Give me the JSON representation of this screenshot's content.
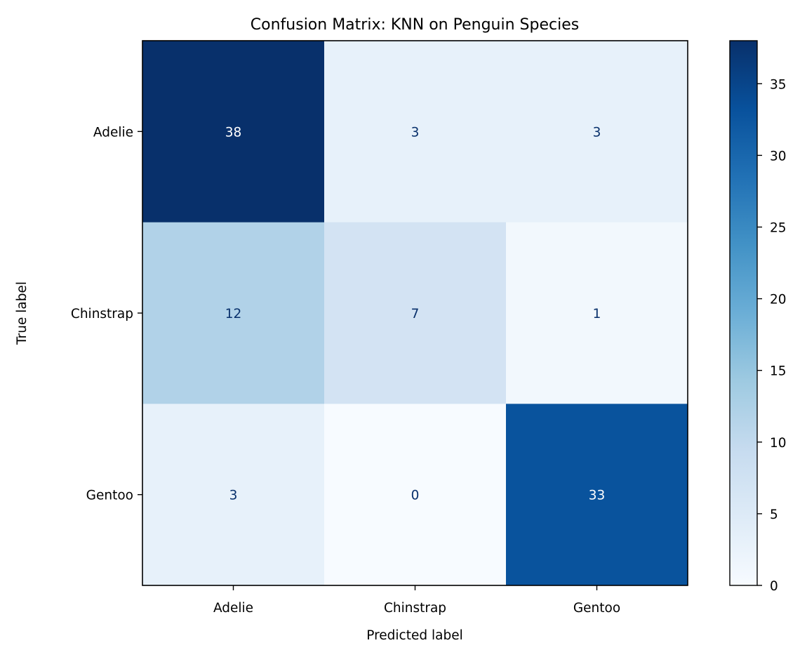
{
  "chart_data": {
    "type": "heatmap",
    "title": "Confusion Matrix: KNN on Penguin Species",
    "xlabel": "Predicted label",
    "ylabel": "True label",
    "row_labels": [
      "Adelie",
      "Chinstrap",
      "Gentoo"
    ],
    "col_labels": [
      "Adelie",
      "Chinstrap",
      "Gentoo"
    ],
    "values": [
      [
        38,
        3,
        3
      ],
      [
        12,
        7,
        1
      ],
      [
        3,
        0,
        33
      ]
    ],
    "colormap": "Blues",
    "colorbar": {
      "range": [
        0,
        38
      ],
      "ticks": [
        0,
        5,
        10,
        15,
        20,
        25,
        30,
        35
      ]
    },
    "colors": {
      "dark_text": "#08306b",
      "light_text": "#ffffff"
    }
  }
}
